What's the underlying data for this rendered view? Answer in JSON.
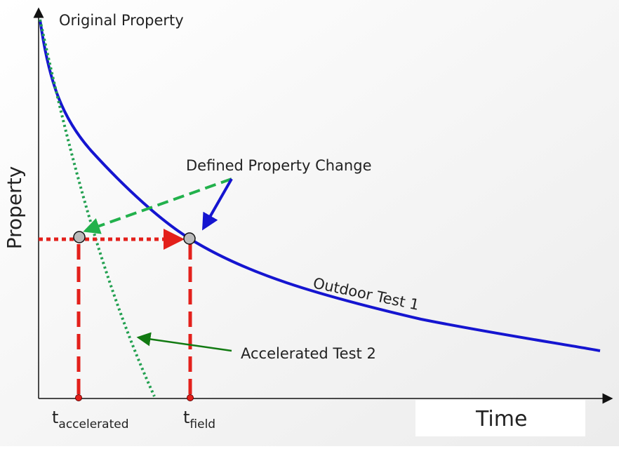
{
  "labels": {
    "original": "Original Property",
    "y_axis": "Property",
    "defined_change": "Defined Property Change",
    "outdoor": "Outdoor Test 1",
    "accelerated": "Accelerated Test 2",
    "t_accel": {
      "base": "t",
      "sub": "accelerated"
    },
    "t_field": {
      "base": "t",
      "sub": "field"
    },
    "x_axis": "Time"
  }
}
